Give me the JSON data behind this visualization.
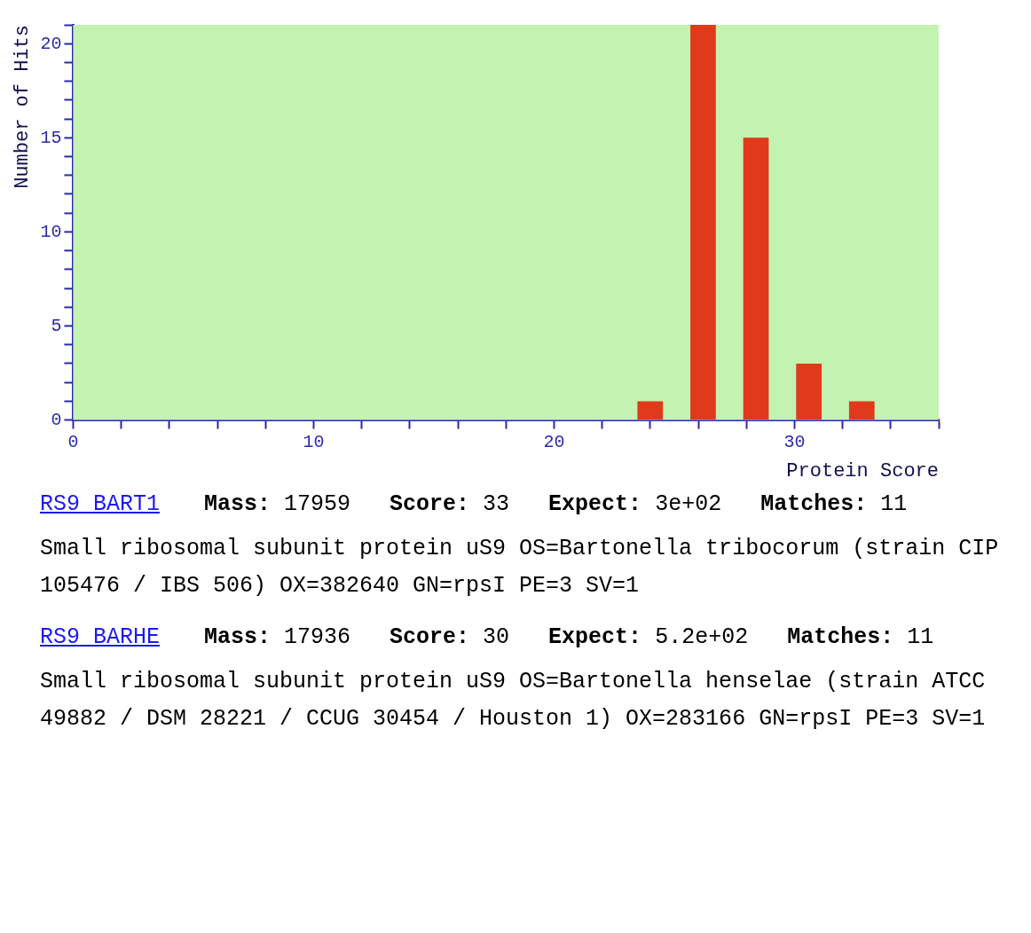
{
  "chart_data": {
    "type": "bar",
    "xlabel": "Protein Score",
    "ylabel": "Number of Hits",
    "x": [
      24,
      26.2,
      28.4,
      30.6,
      32.8
    ],
    "values": [
      1,
      21,
      15,
      3,
      1
    ],
    "color": "#e03a1a",
    "xlim": [
      0,
      36
    ],
    "xticks": [
      0,
      {
        "value": 2,
        "label": null
      },
      {
        "value": 4,
        "label": null
      },
      {
        "value": 6,
        "label": null
      },
      {
        "value": 8,
        "label": null
      },
      10,
      {
        "value": 12,
        "label": null
      },
      {
        "value": 14,
        "label": null
      },
      {
        "value": 16,
        "label": null
      },
      {
        "value": 18,
        "label": null
      },
      20,
      {
        "value": 22,
        "label": null
      },
      {
        "value": 24,
        "label": null
      },
      {
        "value": 26,
        "label": null
      },
      {
        "value": 28,
        "label": null
      },
      30,
      {
        "value": 32,
        "label": null
      },
      {
        "value": 34,
        "label": null
      },
      {
        "value": 36,
        "label": null
      }
    ],
    "ylim": [
      0,
      21
    ],
    "yticks": [
      0,
      {
        "value": 1,
        "label": null
      },
      {
        "value": 2,
        "label": null
      },
      {
        "value": 3,
        "label": null
      },
      {
        "value": 4,
        "label": null
      },
      5,
      {
        "value": 6,
        "label": null
      },
      {
        "value": 7,
        "label": null
      },
      {
        "value": 8,
        "label": null
      },
      {
        "value": 9,
        "label": null
      },
      10,
      {
        "value": 11,
        "label": null
      },
      {
        "value": 12,
        "label": null
      },
      {
        "value": 13,
        "label": null
      },
      {
        "value": 14,
        "label": null
      },
      15,
      {
        "value": 16,
        "label": null
      },
      {
        "value": 17,
        "label": null
      },
      {
        "value": 18,
        "label": null
      },
      {
        "value": 19,
        "label": null
      },
      20,
      {
        "value": 21,
        "label": null
      }
    ],
    "legend": false,
    "annotations": [
      "RS9_BART1",
      "Mass: 17959",
      "Score: 33",
      "Expect: 3e+02",
      "Matches: 11",
      "Small ribosomal subunit protein uS9 OS=Bartonella tribocorum (strain CIP 105476 / IBS 506) OX=382640 GN=rpsI PE=3 SV=1",
      "RS9_BARHE",
      "Mass: 17936",
      "Score: 30",
      "Expect: 5.2e+02",
      "Matches: 11",
      "Small ribosomal subunit protein uS9 OS=Bartonella henselae (strain ATCC 49882 / DSM 28221 / CCUG 30454 / Houston 1) OX=283166 GN=rpsI PE=3 SV=1"
    ]
  }
}
